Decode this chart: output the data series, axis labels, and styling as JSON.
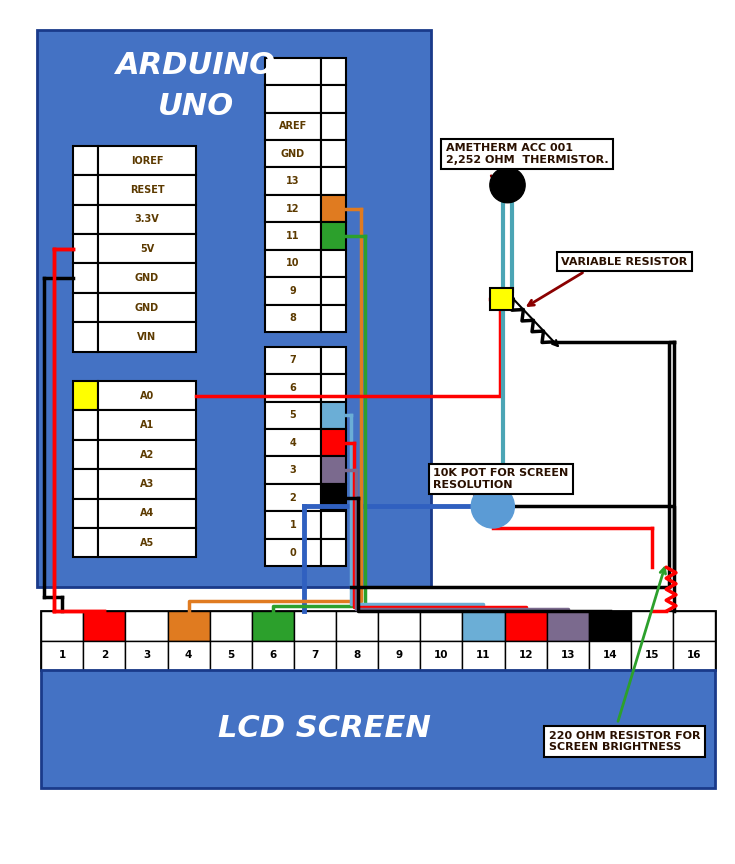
{
  "bg_color": "#ffffff",
  "arduino_bg": "#4472c4",
  "lcd_bg": "#4472c4",
  "lcd_title": "LCD SCREEN",
  "power_pins": [
    "IOREF",
    "RESET",
    "3.3V",
    "5V",
    "GND",
    "GND",
    "VIN"
  ],
  "analog_pins": [
    "A0",
    "A1",
    "A2",
    "A3",
    "A4",
    "A5"
  ],
  "digital_pins_top": [
    "",
    "",
    "AREF",
    "GND",
    "13",
    "12",
    "11",
    "10",
    "9",
    "8"
  ],
  "digital_pins_bot": [
    "7",
    "6",
    "5",
    "4",
    "3",
    "2",
    "1",
    "0"
  ],
  "pin12_color": "#e07b20",
  "pin11_color": "#2ca02c",
  "pin5_color": "#6baed6",
  "pin4_color": "#ff0000",
  "pin3_color": "#7b6a8e",
  "pin2_color": "#000000",
  "a0_color": "#ffff00",
  "lcd_pin_colors_top": {
    "2": "#ff0000",
    "4": "#e07b20",
    "6": "#2ca02c",
    "11": "#6baed6",
    "12": "#ff0000",
    "13": "#7b6a8e",
    "14": "#000000"
  },
  "thermistor_label": "AMETHERM ACC 001\n2,252 OHM  THERMISTOR.",
  "variable_resistor_label": "VARIABLE RESISTOR",
  "pot_label": "10K POT FOR SCREEN\nRESOLUTION",
  "resistor_label": "220 OHM RESISTOR FOR\nSCREEN BRIGHTNESS",
  "teal_color": "#4ba5b5",
  "blue_wire": "#3060c0",
  "pot_color": "#5b9bd5"
}
